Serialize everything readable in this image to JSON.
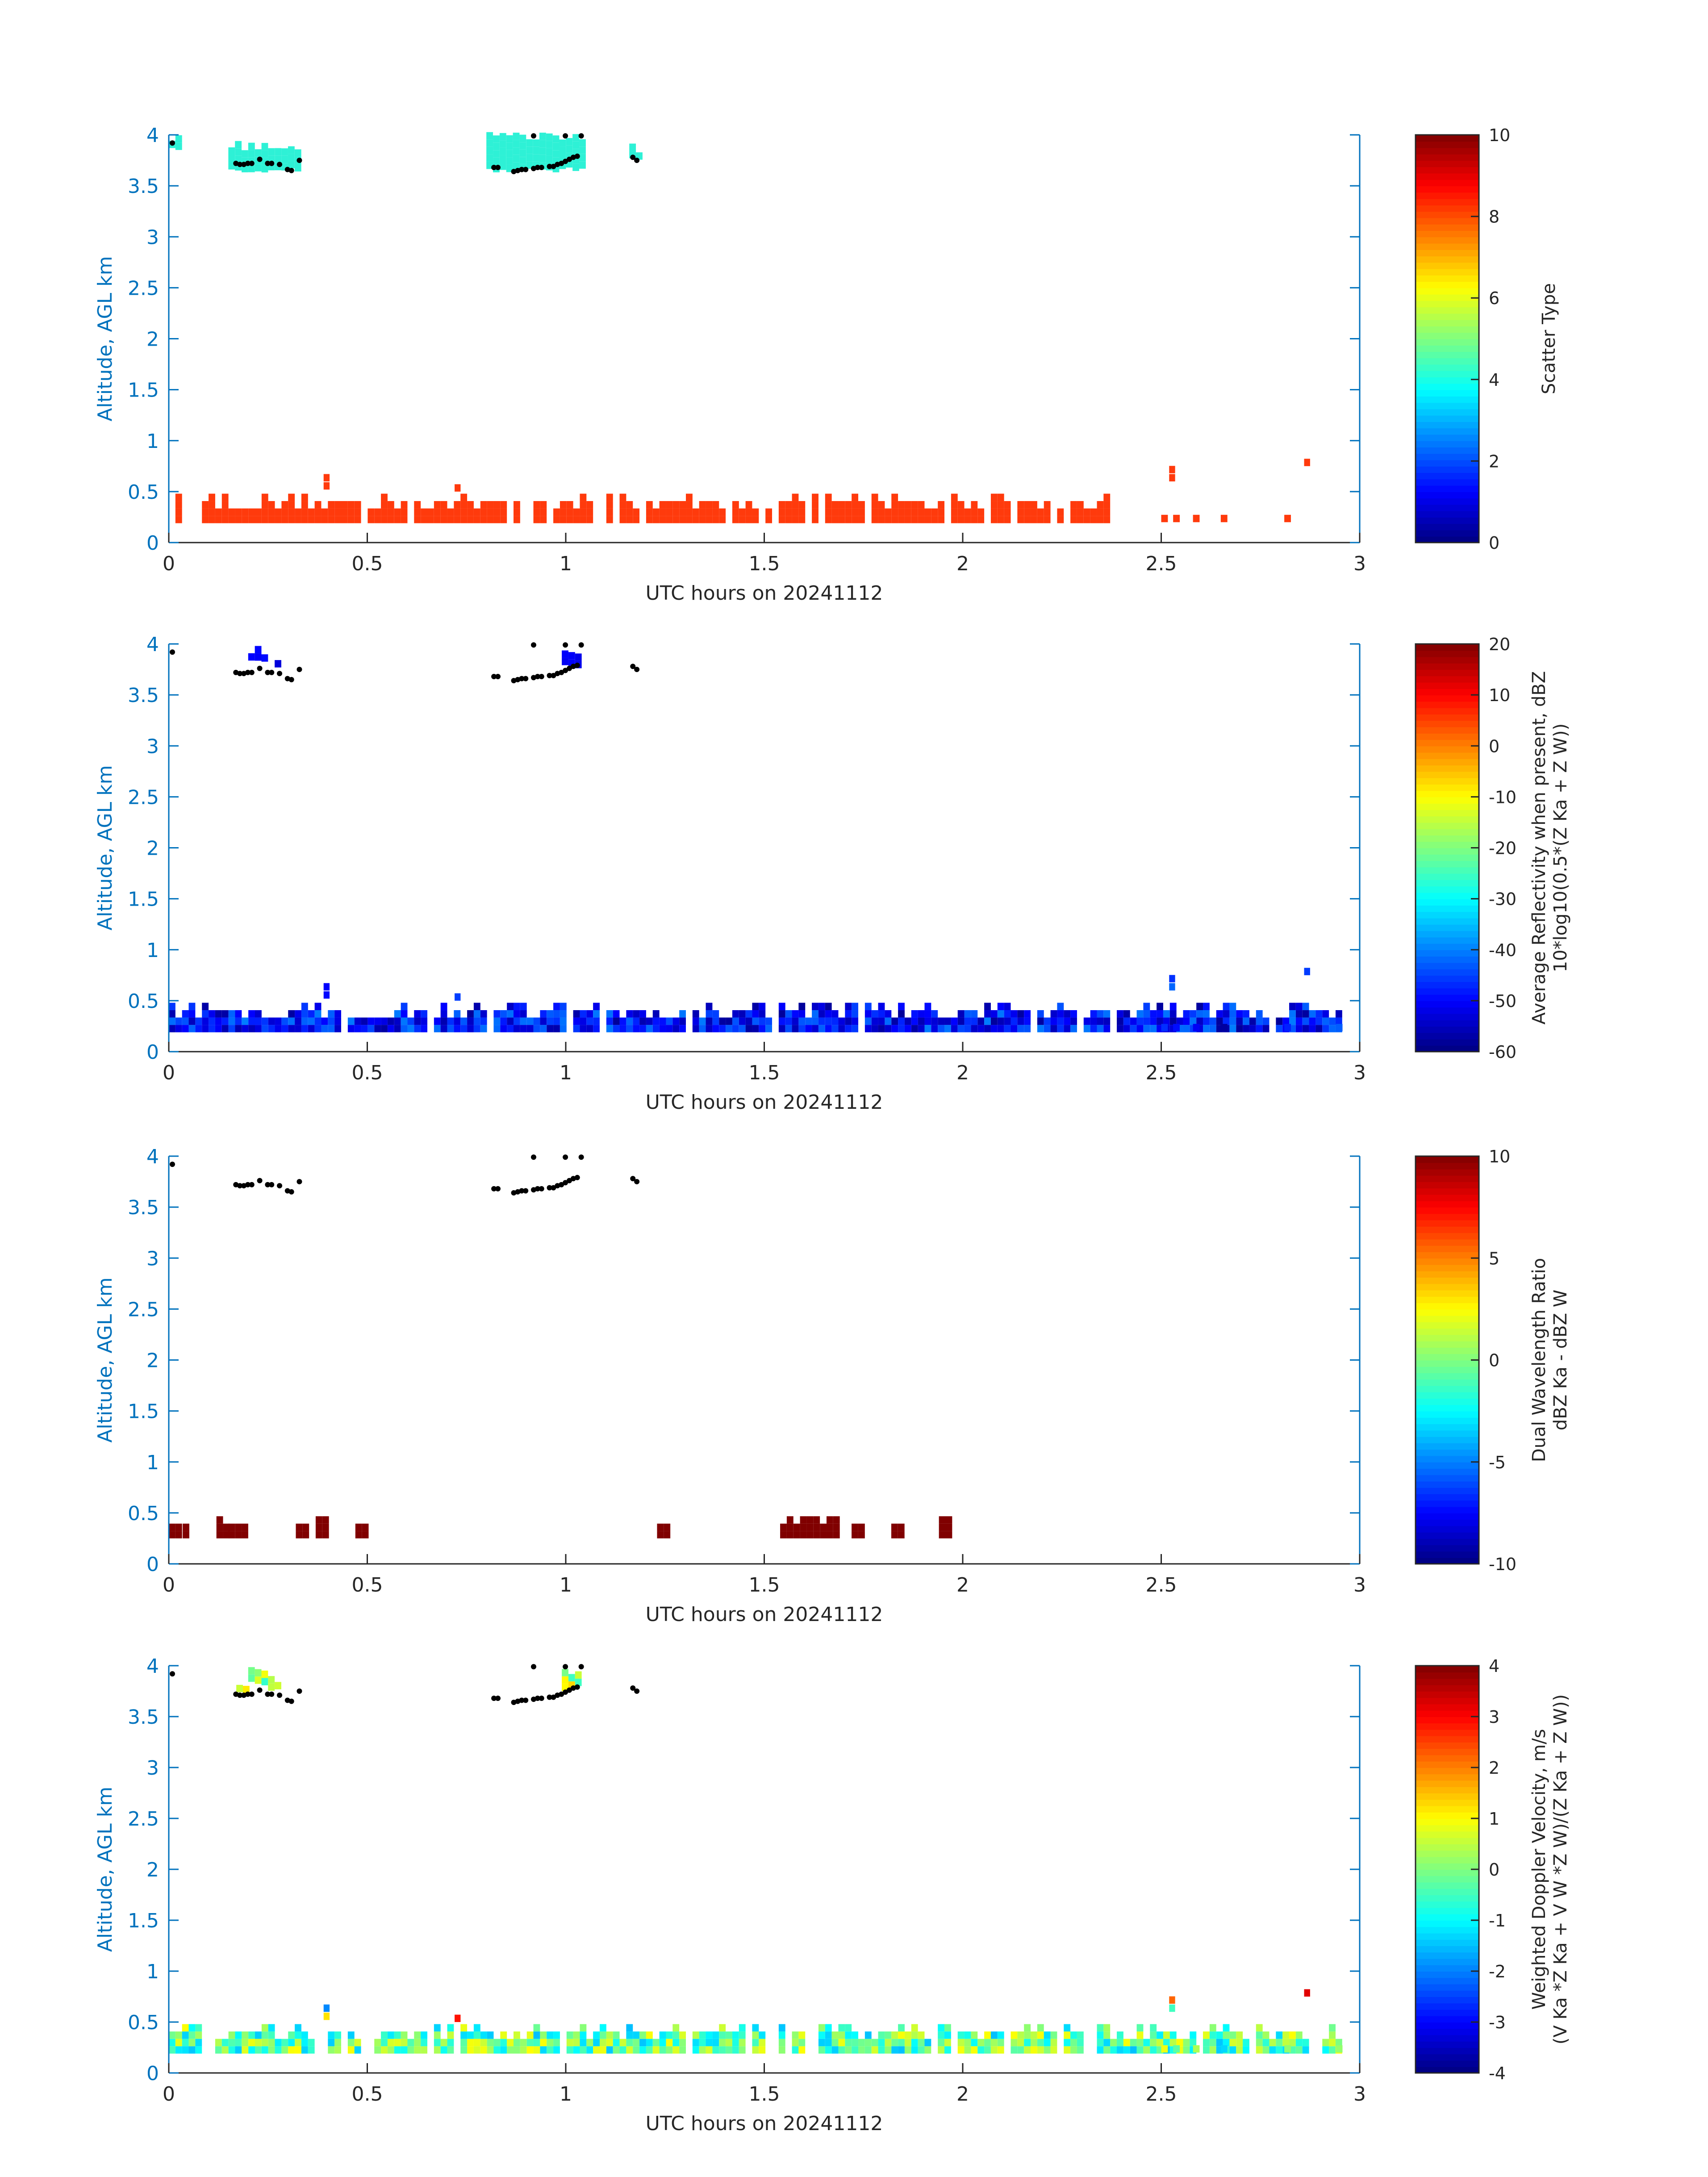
{
  "colors": {
    "axis_blue": "#0072BD",
    "scatter_red": "#FF3A0C",
    "scatter_cyan": "#2EF1D6",
    "dwr_red": "#800000",
    "marker": "#000000"
  },
  "colormap": "jet",
  "chart_data": [
    {
      "type": "heatmap",
      "title": "",
      "xlabel": "UTC hours on 20241112",
      "ylabel": "Altitude, AGL km",
      "xlim": [
        0,
        3
      ],
      "ylim": [
        0,
        4
      ],
      "x_ticks": [
        "0",
        "0.5",
        "1",
        "1.5",
        "2",
        "2.5",
        "3"
      ],
      "y_ticks": [
        "0",
        "0.5",
        "1",
        "1.5",
        "2",
        "2.5",
        "3",
        "3.5",
        "4"
      ],
      "colorbar": {
        "label": "Scatter Type",
        "sublabel": "",
        "clim": [
          0,
          10
        ],
        "ticks": [
          "0",
          "2",
          "4",
          "6",
          "8",
          "10"
        ]
      },
      "grid": false,
      "cloud_layers": [
        {
          "x_start": 0.15,
          "x_end": 0.33,
          "y_bottom": 3.63,
          "y_top": 3.9,
          "value": 3.5
        },
        {
          "x_start": 0.8,
          "x_end": 1.04,
          "y_bottom": 3.63,
          "y_top": 4.0,
          "value": 3.5
        },
        {
          "x_start": 1.16,
          "x_end": 1.19,
          "y_bottom": 3.72,
          "y_top": 3.88,
          "value": 3.5
        },
        {
          "x_start": 0.0,
          "x_end": 0.02,
          "y_bottom": 3.85,
          "y_top": 4.0,
          "value": 3.5
        }
      ],
      "low_layer": {
        "x_range": [
          0,
          2.36
        ],
        "y_range": [
          0.18,
          0.47
        ],
        "value": 8.2
      }
    },
    {
      "type": "heatmap",
      "title": "",
      "xlabel": "UTC hours on 20241112",
      "ylabel": "Altitude, AGL km",
      "xlim": [
        0,
        3
      ],
      "ylim": [
        0,
        4
      ],
      "x_ticks": [
        "0",
        "0.5",
        "1",
        "1.5",
        "2",
        "2.5",
        "3"
      ],
      "y_ticks": [
        "0",
        "0.5",
        "1",
        "1.5",
        "2",
        "2.5",
        "3",
        "3.5",
        "4"
      ],
      "colorbar": {
        "label": "Average Reflectivity when present, dBZ",
        "sublabel": "10*log10(0.5*(Z Ka + Z W))",
        "clim": [
          -60,
          20
        ],
        "ticks": [
          "-60",
          "-50",
          "-40",
          "-30",
          "-20",
          "-10",
          "0",
          "10",
          "20"
        ]
      },
      "grid": false,
      "cloud_layers": [
        {
          "x_start": 0.2,
          "x_end": 0.24,
          "y_bottom": 3.8,
          "y_top": 3.95,
          "value": -50
        },
        {
          "x_start": 0.25,
          "x_end": 0.27,
          "y_bottom": 3.75,
          "y_top": 3.85,
          "value": -52
        },
        {
          "x_start": 0.99,
          "x_end": 1.04,
          "y_bottom": 3.75,
          "y_top": 3.93,
          "value": -51
        }
      ],
      "low_layer": {
        "x_range": [
          0,
          2.95
        ],
        "y_range": [
          0.18,
          0.47
        ],
        "value_range": [
          -58,
          -40
        ]
      }
    },
    {
      "type": "heatmap",
      "title": "",
      "xlabel": "UTC hours on 20241112",
      "ylabel": "Altitude, AGL km",
      "xlim": [
        0,
        3
      ],
      "ylim": [
        0,
        4
      ],
      "x_ticks": [
        "0",
        "0.5",
        "1",
        "1.5",
        "2",
        "2.5",
        "3"
      ],
      "y_ticks": [
        "0",
        "0.5",
        "1",
        "1.5",
        "2",
        "2.5",
        "3",
        "3.5",
        "4"
      ],
      "colorbar": {
        "label": "Dual Wavelength Ratio",
        "sublabel": "dBZ Ka - dBZ W",
        "clim": [
          -10,
          10
        ],
        "ticks": [
          "-10",
          "-5",
          "0",
          "5",
          "10"
        ]
      },
      "grid": false,
      "segments": [
        {
          "x": [
            0.0,
            0.02
          ],
          "y": [
            0.25,
            0.35
          ],
          "value": 10
        },
        {
          "x": [
            0.035,
            0.05
          ],
          "y": [
            0.25,
            0.35
          ],
          "value": 10
        },
        {
          "x": [
            0.12,
            0.14
          ],
          "y": [
            0.25,
            0.42
          ],
          "value": 10
        },
        {
          "x": [
            0.15,
            0.2
          ],
          "y": [
            0.25,
            0.42
          ],
          "value": 10
        },
        {
          "x": [
            0.32,
            0.34
          ],
          "y": [
            0.25,
            0.35
          ],
          "value": 10
        },
        {
          "x": [
            0.37,
            0.39
          ],
          "y": [
            0.25,
            0.42
          ],
          "value": 10
        },
        {
          "x": [
            0.47,
            0.49
          ],
          "y": [
            0.25,
            0.35
          ],
          "value": 10
        },
        {
          "x": [
            1.23,
            1.25
          ],
          "y": [
            0.25,
            0.35
          ],
          "value": 10
        },
        {
          "x": [
            1.54,
            1.68
          ],
          "y": [
            0.25,
            0.47
          ],
          "value": 10
        },
        {
          "x": [
            1.72,
            1.74
          ],
          "y": [
            0.25,
            0.35
          ],
          "value": 10
        },
        {
          "x": [
            1.82,
            1.84
          ],
          "y": [
            0.25,
            0.35
          ],
          "value": 10
        },
        {
          "x": [
            1.94,
            1.97
          ],
          "y": [
            0.25,
            0.47
          ],
          "value": 10
        }
      ]
    },
    {
      "type": "heatmap",
      "title": "",
      "xlabel": "UTC hours on 20241112",
      "ylabel": "Altitude, AGL km",
      "xlim": [
        0,
        3
      ],
      "ylim": [
        0,
        4
      ],
      "x_ticks": [
        "0",
        "0.5",
        "1",
        "1.5",
        "2",
        "2.5",
        "3"
      ],
      "y_ticks": [
        "0",
        "0.5",
        "1",
        "1.5",
        "2",
        "2.5",
        "3",
        "3.5",
        "4"
      ],
      "colorbar": {
        "label": "Weighted Doppler Velocity, m/s",
        "sublabel": "(V Ka *Z Ka + V W *Z W)/(Z Ka + Z W))",
        "clim": [
          -4,
          4
        ],
        "ticks": [
          "-4",
          "-3",
          "-2",
          "-1",
          "0",
          "1",
          "2",
          "3",
          "4"
        ]
      },
      "grid": false,
      "cloud_layers": [
        {
          "x_start": 0.17,
          "x_end": 0.19,
          "y_bottom": 3.72,
          "y_top": 3.85,
          "value": 0.8
        },
        {
          "x_start": 0.2,
          "x_end": 0.24,
          "y_bottom": 3.8,
          "y_top": 3.95,
          "value": 0.2
        },
        {
          "x_start": 0.25,
          "x_end": 0.27,
          "y_bottom": 3.75,
          "y_top": 3.85,
          "value": -0.1
        },
        {
          "x_start": 0.99,
          "x_end": 1.04,
          "y_bottom": 3.75,
          "y_top": 3.93,
          "value": 0.3
        }
      ],
      "low_layer": {
        "x_range": [
          0,
          2.95
        ],
        "y_range": [
          0.18,
          0.47
        ],
        "value_range": [
          -1.5,
          1
        ]
      }
    }
  ],
  "cloud_base_markers": {
    "x": [
      0.0,
      0.16,
      0.17,
      0.18,
      0.19,
      0.2,
      0.22,
      0.24,
      0.25,
      0.27,
      0.29,
      0.3,
      0.32,
      0.81,
      0.82,
      0.86,
      0.87,
      0.88,
      0.89,
      0.91,
      0.92,
      0.93,
      0.95,
      0.96,
      0.97,
      0.98,
      0.99,
      1.0,
      1.01,
      1.02,
      1.16,
      1.17,
      0.91,
      0.99,
      1.03
    ],
    "y": [
      3.92,
      3.72,
      3.71,
      3.71,
      3.72,
      3.72,
      3.76,
      3.72,
      3.72,
      3.71,
      3.66,
      3.65,
      3.75,
      3.68,
      3.68,
      3.64,
      3.65,
      3.66,
      3.66,
      3.67,
      3.68,
      3.68,
      3.69,
      3.69,
      3.71,
      3.72,
      3.74,
      3.76,
      3.78,
      3.79,
      3.78,
      3.75,
      3.99,
      3.99,
      3.99
    ]
  }
}
